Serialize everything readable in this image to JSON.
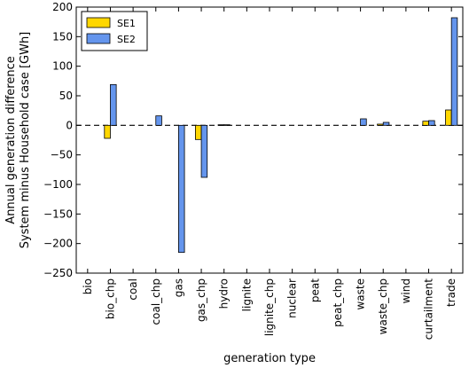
{
  "chart_data": {
    "type": "bar",
    "title": "",
    "xlabel": "generation type",
    "ylabel_lines": [
      "Annual generation difference",
      "System minus Household case [GWh]"
    ],
    "ylim": [
      -250,
      200
    ],
    "yticks": [
      -250,
      -200,
      -150,
      -100,
      -50,
      0,
      50,
      100,
      150,
      200
    ],
    "ytick_labels": [
      "−250",
      "−200",
      "−150",
      "−100",
      "−50",
      "0",
      "50",
      "100",
      "150",
      "200"
    ],
    "categories": [
      "bio",
      "bio_chp",
      "coal",
      "coal_chp",
      "gas",
      "gas_chp",
      "hydro",
      "lignite",
      "lignite_chp",
      "nuclear",
      "peat",
      "peat_chp",
      "waste",
      "waste_chp",
      "wind",
      "curtailment",
      "trade"
    ],
    "series": [
      {
        "name": "SE1",
        "color": "#FFD700",
        "values": [
          0,
          -22,
          0,
          0,
          0,
          -24,
          1,
          0,
          0,
          0,
          0,
          0,
          0,
          2,
          0,
          7,
          26
        ]
      },
      {
        "name": "SE2",
        "color": "#6495ED",
        "values": [
          0,
          69,
          0,
          16,
          -215,
          -88,
          1,
          0,
          0,
          0,
          0,
          0,
          11,
          5,
          0,
          8,
          182
        ]
      }
    ],
    "zero_line": "dashed",
    "grid": false,
    "legend_position": "top-left"
  }
}
